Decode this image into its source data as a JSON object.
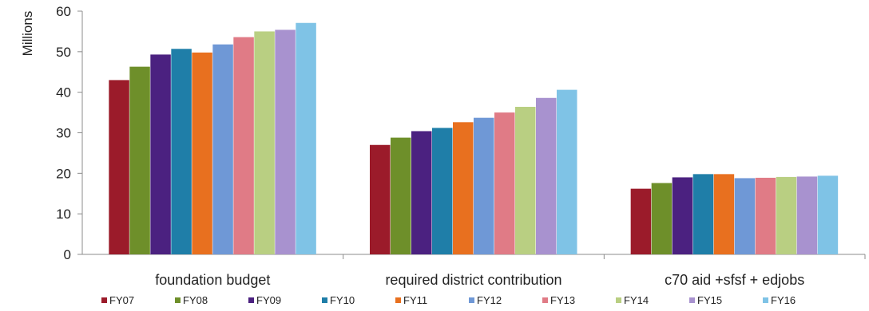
{
  "chart_data": {
    "type": "bar",
    "title": "",
    "xlabel": "",
    "ylabel": "Millions",
    "ylim": [
      0,
      60
    ],
    "yticks": [
      0,
      10,
      20,
      30,
      40,
      50,
      60
    ],
    "grid": false,
    "legend_position": "bottom",
    "categories": [
      "foundation budget",
      "required district contribution",
      "c70 aid +sfsf + edjobs"
    ],
    "series": [
      {
        "name": "FY07",
        "color": "#9b1b2a",
        "values": [
          43.0,
          27.0,
          16.2
        ]
      },
      {
        "name": "FY08",
        "color": "#6e8f2a",
        "values": [
          46.3,
          28.8,
          17.6
        ]
      },
      {
        "name": "FY09",
        "color": "#4b2180",
        "values": [
          49.3,
          30.4,
          19.0
        ]
      },
      {
        "name": "FY10",
        "color": "#1f7ea8",
        "values": [
          50.7,
          31.2,
          19.8
        ]
      },
      {
        "name": "FY11",
        "color": "#e8701f",
        "values": [
          49.8,
          32.6,
          19.8
        ]
      },
      {
        "name": "FY12",
        "color": "#6f98d6",
        "values": [
          51.8,
          33.7,
          18.8
        ]
      },
      {
        "name": "FY13",
        "color": "#e07b86",
        "values": [
          53.6,
          35.0,
          18.9
        ]
      },
      {
        "name": "FY14",
        "color": "#b9cf82",
        "values": [
          55.0,
          36.4,
          19.1
        ]
      },
      {
        "name": "FY15",
        "color": "#a892cf",
        "values": [
          55.4,
          38.6,
          19.2
        ]
      },
      {
        "name": "FY16",
        "color": "#7fc3e6",
        "values": [
          57.1,
          40.6,
          19.4
        ]
      }
    ]
  }
}
